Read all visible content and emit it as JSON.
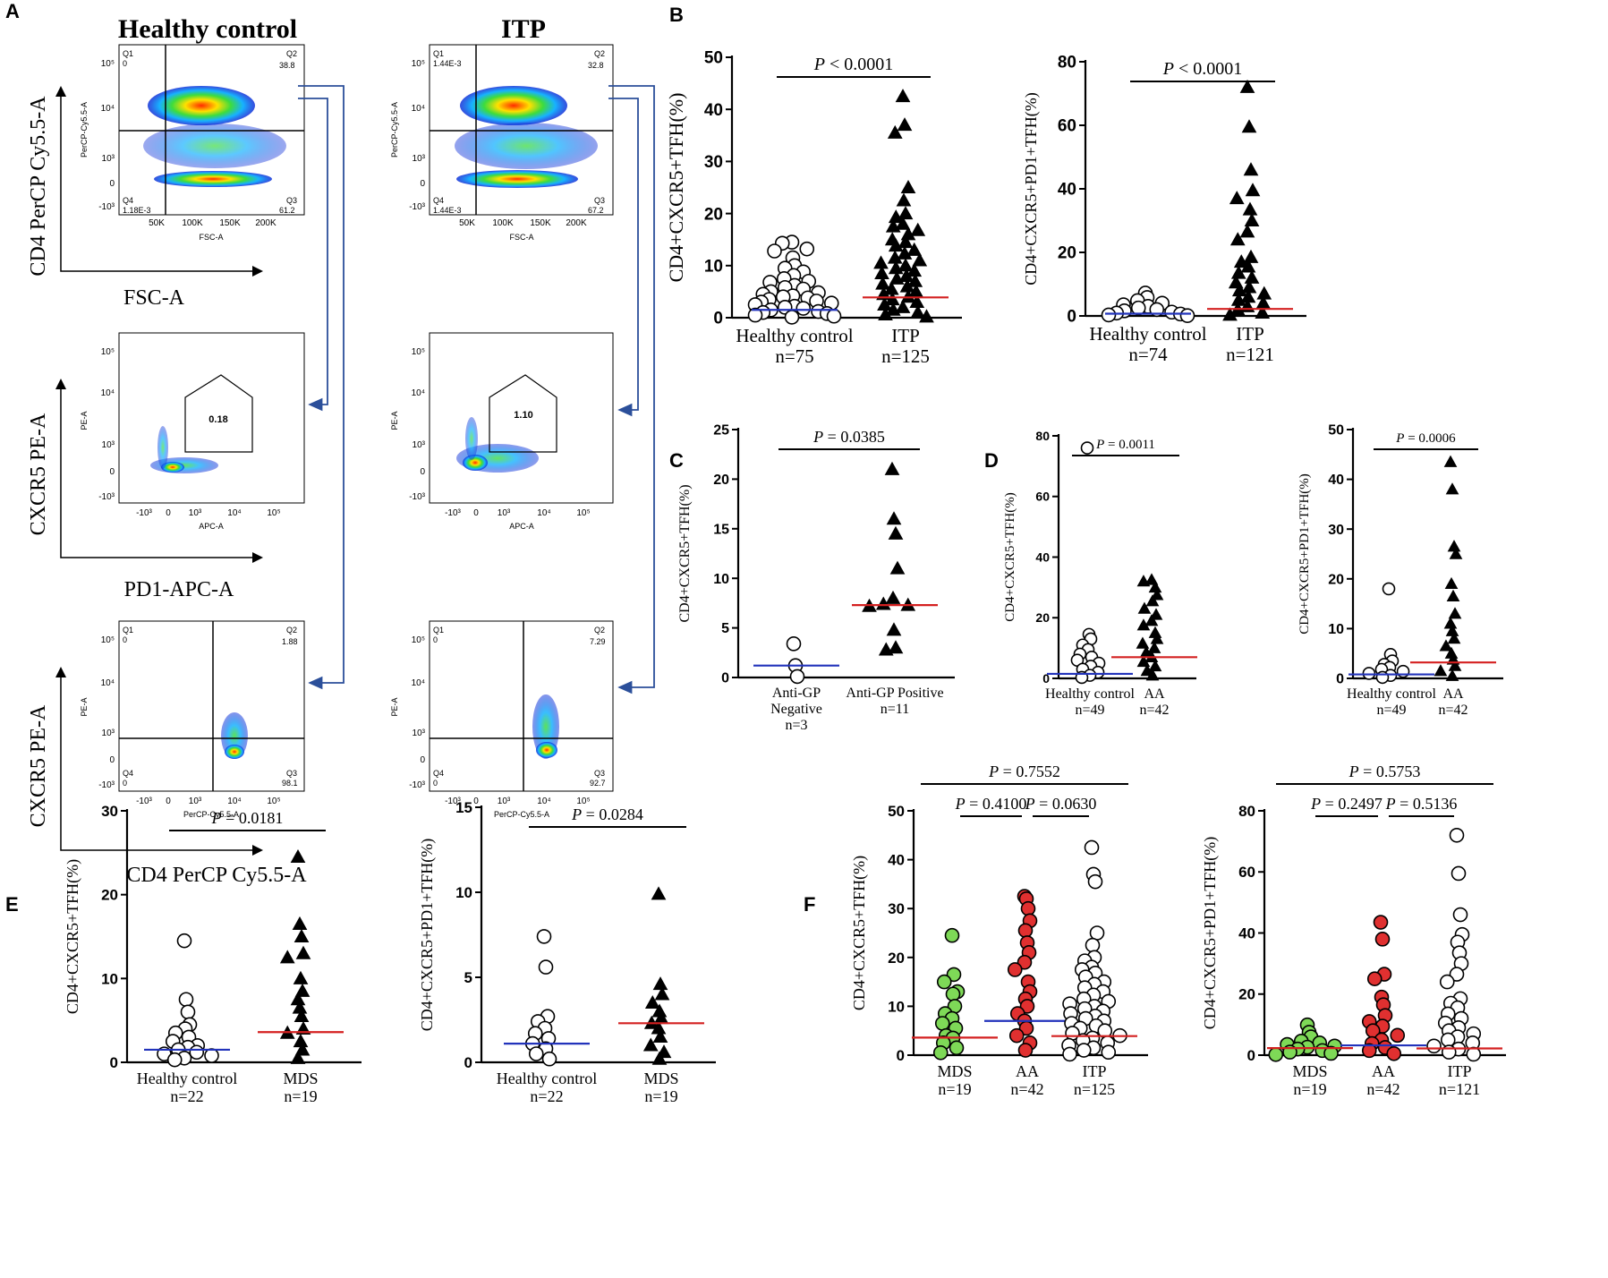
{
  "colors": {
    "black": "#000000",
    "blue_median": "#2233bb",
    "red_median": "#d42020",
    "arrow": "#2b4f9a",
    "green": "#7ed957",
    "red_point": "#e03030"
  },
  "panel_letters": {
    "A": "A",
    "B": "B",
    "C": "C",
    "D": "D",
    "E": "E",
    "F": "F"
  },
  "flow": {
    "hc_title": "Healthy control",
    "itp_title": "ITP",
    "axis_titles": {
      "row1_y": "CD4 PerCP Cy5.5-A",
      "row1_x": "FSC-A",
      "row2_y": "CXCR5 PE-A",
      "row2_x": "PD1-APC-A",
      "row3_y": "CXCR5 PE-A",
      "row3_x": "CD4 PerCP Cy5.5-A"
    },
    "plot_labels": {
      "perCP": "PerCP-Cy5.5-A",
      "fsc": "FSC-A",
      "pe": "PE-A",
      "apc": "APC-A",
      "fsc_ticks": [
        "50K",
        "100K",
        "150K",
        "200K"
      ],
      "log_ticks_y": [
        "10⁵",
        "10⁴",
        "10³",
        "0",
        "-10³"
      ],
      "log_ticks_x": [
        "-10³",
        "0",
        "10³",
        "10⁴",
        "10⁵"
      ]
    },
    "hc": {
      "r1": {
        "q1": "Q1",
        "q1v": "0",
        "q2": "Q2",
        "q2v": "38.8",
        "q3": "Q3",
        "q3v": "61.2",
        "q4": "Q4",
        "q4v": "1.18E-3"
      },
      "gate": "0.18",
      "r3": {
        "q1": "Q1",
        "q1v": "0",
        "q2": "Q2",
        "q2v": "1.88",
        "q3": "Q3",
        "q3v": "98.1",
        "q4": "Q4",
        "q4v": "0"
      }
    },
    "itp": {
      "r1": {
        "q1": "Q1",
        "q1v": "1.44E-3",
        "q2": "Q2",
        "q2v": "32.8",
        "q3": "Q3",
        "q3v": "67.2",
        "q4": "Q4",
        "q4v": "1.44E-3"
      },
      "gate": "1.10",
      "r3": {
        "q1": "Q1",
        "q1v": "0",
        "q2": "Q2",
        "q2v": "7.29",
        "q3": "Q3",
        "q3v": "92.7",
        "q4": "Q4",
        "q4v": "0"
      }
    }
  },
  "chart_data": [
    {
      "id": "B1",
      "type": "scatter",
      "ylabel": "CD4+CXCR5+TFH(%)",
      "ylim": [
        0,
        50
      ],
      "yticks": [
        0,
        10,
        20,
        30,
        40,
        50
      ],
      "groups": [
        {
          "label": "Healthy control",
          "n": "n=75",
          "marker": "circle",
          "color": "#ffffff",
          "median": 1.5,
          "median_color": "#2233bb",
          "values": [
            14.5,
            14.3,
            13.2,
            12.8,
            11.5,
            10.0,
            9.5,
            8.8,
            8.1,
            7.5,
            7.0,
            6.8,
            6.2,
            5.8,
            5.5,
            5.0,
            4.8,
            4.5,
            4.2,
            4.0,
            3.8,
            3.5,
            3.2,
            3.0,
            2.8,
            2.5,
            2.2,
            2.0,
            1.8,
            1.5,
            1.2,
            1.0,
            0.8,
            0.5,
            0.3,
            0.1
          ]
        },
        {
          "label": "ITP",
          "n": "n=125",
          "marker": "triangle",
          "color": "#000000",
          "median": 3.9,
          "median_color": "#d42020",
          "values": [
            42.5,
            37.0,
            35.5,
            25.0,
            22.5,
            20.0,
            19.3,
            18.0,
            17.5,
            16.8,
            16.0,
            15.0,
            14.5,
            13.8,
            13.0,
            12.3,
            11.5,
            11.0,
            10.5,
            10.0,
            9.5,
            9.0,
            8.5,
            8.0,
            7.5,
            7.0,
            6.5,
            6.0,
            5.5,
            5.0,
            4.5,
            4.0,
            3.5,
            3.0,
            2.5,
            2.0,
            1.5,
            1.0,
            0.6,
            0.2
          ]
        }
      ],
      "comparisons": [
        {
          "label": "P < 0.0001",
          "from": 0,
          "to": 1
        }
      ]
    },
    {
      "id": "B2",
      "type": "scatter",
      "ylabel": "CD4+CXCR5+PD1+TFH(%)",
      "ylim": [
        0,
        80
      ],
      "yticks": [
        0,
        20,
        40,
        60,
        80
      ],
      "groups": [
        {
          "label": "Healthy control",
          "n": "n=74",
          "marker": "circle",
          "color": "#ffffff",
          "median": 0.7,
          "median_color": "#2233bb",
          "values": [
            7.2,
            5.8,
            4.8,
            4.0,
            3.5,
            3.0,
            2.5,
            2.0,
            1.6,
            1.2,
            0.9,
            0.6,
            0.3,
            0.1
          ]
        },
        {
          "label": "ITP",
          "n": "n=121",
          "marker": "triangle",
          "color": "#000000",
          "median": 2.2,
          "median_color": "#d42020",
          "values": [
            72.0,
            59.5,
            46.0,
            39.5,
            37.0,
            33.5,
            30.0,
            26.5,
            24.0,
            18.5,
            17.0,
            15.5,
            13.5,
            12.0,
            10.5,
            9.0,
            8.0,
            7.0,
            6.0,
            5.0,
            4.0,
            3.0,
            2.0,
            1.0,
            0.3
          ]
        }
      ],
      "comparisons": [
        {
          "label": "P < 0.0001",
          "from": 0,
          "to": 1
        }
      ]
    },
    {
      "id": "C",
      "type": "scatter",
      "ylabel": "CD4+CXCR5+TFH(%)",
      "ylim": [
        0,
        25
      ],
      "yticks": [
        0,
        5,
        10,
        15,
        20,
        25
      ],
      "groups": [
        {
          "label": "Anti-GP\nNegative",
          "n": "n=3",
          "marker": "circle",
          "color": "#ffffff",
          "median": 1.2,
          "median_color": "#2233bb",
          "values": [
            3.4,
            1.2,
            0.1
          ]
        },
        {
          "label": "Anti-GP Positive",
          "n": "n=11",
          "marker": "triangle",
          "color": "#000000",
          "median": 7.3,
          "median_color": "#d42020",
          "values": [
            21.0,
            16.0,
            14.5,
            11.0,
            8.0,
            7.4,
            7.3,
            7.2,
            4.8,
            3.0,
            2.8
          ]
        }
      ],
      "comparisons": [
        {
          "label": "P = 0.0385",
          "from": 0,
          "to": 1
        }
      ]
    },
    {
      "id": "D1",
      "type": "scatter",
      "ylabel": "CD4+CXCR5+TFH(%)",
      "ylim": [
        0,
        80
      ],
      "yticks": [
        0,
        20,
        40,
        60,
        80
      ],
      "groups": [
        {
          "label": "Healthy control",
          "n": "n=49",
          "marker": "circle",
          "color": "#ffffff",
          "median": 1.5,
          "median_color": "#2233bb",
          "values": [
            76.0,
            14.5,
            13.0,
            11.0,
            9.5,
            8.0,
            7.0,
            6.0,
            5.0,
            4.0,
            3.0,
            2.0,
            1.0,
            0.3
          ]
        },
        {
          "label": "AA",
          "n": "n=42",
          "marker": "triangle",
          "color": "#000000",
          "median": 7.0,
          "median_color": "#d42020",
          "values": [
            32.5,
            32.0,
            30.0,
            27.5,
            25.5,
            23.0,
            21.0,
            19.0,
            17.5,
            15.0,
            13.0,
            11.5,
            10.0,
            8.5,
            7.0,
            5.5,
            4.0,
            2.5,
            1.0
          ]
        }
      ],
      "comparisons": [
        {
          "label": "P = 0.0011",
          "from": 0,
          "to": 1
        }
      ]
    },
    {
      "id": "D2",
      "type": "scatter",
      "ylabel": "CD4+CXCR5+PD1+TFH(%)",
      "ylim": [
        0,
        50
      ],
      "yticks": [
        0,
        10,
        20,
        30,
        40,
        50
      ],
      "groups": [
        {
          "label": "Healthy control",
          "n": "n=49",
          "marker": "circle",
          "color": "#ffffff",
          "median": 0.8,
          "median_color": "#2233bb",
          "values": [
            18.0,
            4.8,
            3.5,
            2.8,
            2.2,
            1.8,
            1.4,
            1.0,
            0.6,
            0.2
          ]
        },
        {
          "label": "AA",
          "n": "n=42",
          "marker": "triangle",
          "color": "#000000",
          "median": 3.2,
          "median_color": "#d42020",
          "values": [
            43.5,
            38.0,
            26.5,
            25.0,
            19.0,
            16.5,
            13.0,
            11.0,
            9.5,
            8.0,
            6.5,
            5.0,
            3.8,
            2.5,
            1.5,
            0.5
          ]
        }
      ],
      "comparisons": [
        {
          "label": "P = 0.0006",
          "from": 0,
          "to": 1
        }
      ]
    },
    {
      "id": "E1",
      "type": "scatter",
      "ylabel": "CD4+CXCR5+TFH(%)",
      "ylim": [
        0,
        30
      ],
      "yticks": [
        0,
        10,
        20,
        30
      ],
      "groups": [
        {
          "label": "Healthy control",
          "n": "n=22",
          "marker": "circle",
          "color": "#ffffff",
          "median": 1.5,
          "median_color": "#2233bb",
          "values": [
            14.5,
            7.5,
            6.0,
            4.5,
            4.0,
            3.5,
            3.0,
            2.5,
            2.0,
            1.8,
            1.5,
            1.2,
            1.0,
            0.8,
            0.5,
            0.3
          ]
        },
        {
          "label": "MDS",
          "n": "n=19",
          "marker": "triangle",
          "color": "#000000",
          "median": 3.6,
          "median_color": "#d42020",
          "values": [
            24.5,
            16.5,
            15.0,
            13.0,
            12.5,
            10.0,
            8.5,
            7.5,
            6.5,
            5.5,
            4.0,
            3.5,
            2.5,
            1.5,
            0.5
          ]
        }
      ],
      "comparisons": [
        {
          "label": "P = 0.0181",
          "from": 0,
          "to": 1
        }
      ]
    },
    {
      "id": "E2",
      "type": "scatter",
      "ylabel": "CD4+CXCR5+PD1+TFH(%)",
      "ylim": [
        0,
        15
      ],
      "yticks": [
        0,
        5,
        10,
        15
      ],
      "groups": [
        {
          "label": "Healthy control",
          "n": "n=22",
          "marker": "circle",
          "color": "#ffffff",
          "median": 1.1,
          "median_color": "#2233bb",
          "values": [
            7.4,
            5.6,
            2.7,
            2.4,
            2.0,
            1.7,
            1.4,
            1.1,
            0.8,
            0.5,
            0.2
          ]
        },
        {
          "label": "MDS",
          "n": "n=19",
          "marker": "triangle",
          "color": "#000000",
          "median": 2.3,
          "median_color": "#d42020",
          "values": [
            9.9,
            4.6,
            4.0,
            3.5,
            3.0,
            2.6,
            2.3,
            2.0,
            1.5,
            1.0,
            0.6,
            0.2
          ]
        }
      ],
      "comparisons": [
        {
          "label": "P = 0.0284",
          "from": 0,
          "to": 1
        }
      ]
    },
    {
      "id": "F1",
      "type": "scatter",
      "ylabel": "CD4+CXCR5+TFH(%)",
      "ylim": [
        0,
        50
      ],
      "yticks": [
        0,
        10,
        20,
        30,
        40,
        50
      ],
      "groups": [
        {
          "label": "MDS",
          "n": "n=19",
          "marker": "circle",
          "color": "#7ed957",
          "median": 3.6,
          "median_color": "#d42020",
          "values": [
            24.5,
            16.5,
            15.0,
            13.0,
            12.5,
            10.0,
            8.5,
            7.5,
            6.5,
            5.5,
            4.0,
            3.5,
            2.5,
            1.5,
            0.5
          ]
        },
        {
          "label": "AA",
          "n": "n=42",
          "marker": "circle",
          "color": "#e03030",
          "median": 7.0,
          "median_color": "#2233bb",
          "values": [
            32.5,
            32.0,
            30.0,
            27.5,
            25.5,
            23.0,
            21.0,
            19.0,
            17.5,
            15.0,
            13.0,
            11.5,
            10.0,
            8.5,
            7.0,
            5.5,
            4.0,
            2.5,
            1.0
          ]
        },
        {
          "label": "ITP",
          "n": "n=125",
          "marker": "circle",
          "color": "#ffffff",
          "median": 3.9,
          "median_color": "#d42020",
          "values": [
            42.5,
            37.0,
            35.5,
            25.0,
            22.5,
            20.0,
            19.3,
            18.0,
            17.5,
            16.8,
            16.0,
            15.0,
            14.5,
            13.8,
            13.0,
            12.3,
            11.5,
            11.0,
            10.5,
            10.0,
            9.5,
            9.0,
            8.5,
            8.0,
            7.5,
            7.0,
            6.5,
            6.0,
            5.5,
            5.0,
            4.5,
            4.0,
            3.5,
            3.0,
            2.5,
            2.0,
            1.5,
            1.0,
            0.6,
            0.2
          ]
        }
      ],
      "comparisons": [
        {
          "label": "P = 0.7552",
          "from": 0,
          "to": 2
        },
        {
          "label": "P = 0.4100",
          "from": 0,
          "to": 1
        },
        {
          "label": "P = 0.0630",
          "from": 1,
          "to": 2
        }
      ]
    },
    {
      "id": "F2",
      "type": "scatter",
      "ylabel": "CD4+CXCR5+PD1+TFH(%)",
      "ylim": [
        0,
        80
      ],
      "yticks": [
        0,
        20,
        40,
        60,
        80
      ],
      "groups": [
        {
          "label": "MDS",
          "n": "n=19",
          "marker": "circle",
          "color": "#7ed957",
          "median": 2.3,
          "median_color": "#d42020",
          "values": [
            9.9,
            7.5,
            6.0,
            4.6,
            4.0,
            3.5,
            3.0,
            2.6,
            2.0,
            1.5,
            1.0,
            0.6,
            0.2
          ]
        },
        {
          "label": "AA",
          "n": "n=42",
          "marker": "circle",
          "color": "#e03030",
          "median": 3.2,
          "median_color": "#2233bb",
          "values": [
            43.5,
            38.0,
            26.5,
            25.0,
            19.0,
            16.5,
            13.0,
            11.0,
            9.5,
            8.0,
            6.5,
            5.0,
            3.8,
            2.5,
            1.5,
            0.5
          ]
        },
        {
          "label": "ITP",
          "n": "n=121",
          "marker": "circle",
          "color": "#ffffff",
          "median": 2.2,
          "median_color": "#d42020",
          "values": [
            72.0,
            59.5,
            46.0,
            39.5,
            37.0,
            33.5,
            30.0,
            26.5,
            24.0,
            18.5,
            17.0,
            15.5,
            13.5,
            12.0,
            10.5,
            9.0,
            8.0,
            7.0,
            6.0,
            5.0,
            4.0,
            3.0,
            2.0,
            1.0,
            0.3
          ]
        }
      ],
      "comparisons": [
        {
          "label": "P = 0.5753",
          "from": 0,
          "to": 2
        },
        {
          "label": "P = 0.2497",
          "from": 0,
          "to": 1
        },
        {
          "label": "P = 0.5136",
          "from": 1,
          "to": 2
        }
      ]
    }
  ]
}
